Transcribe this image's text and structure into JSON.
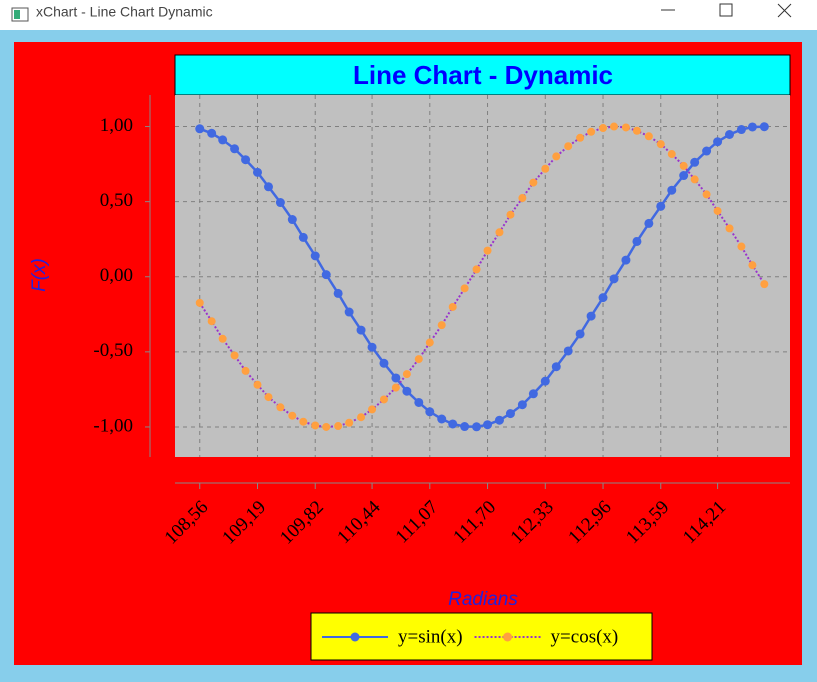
{
  "window": {
    "title": "xChart - Line Chart Dynamic"
  },
  "chart_data": {
    "type": "line",
    "title": "Line Chart - Dynamic",
    "x_label": "Radians",
    "y_label": "F(x)",
    "x": [
      108.56,
      108.69,
      108.81,
      108.94,
      109.06,
      109.19,
      109.31,
      109.44,
      109.57,
      109.69,
      109.82,
      109.94,
      110.07,
      110.19,
      110.32,
      110.44,
      110.57,
      110.7,
      110.82,
      110.95,
      111.07,
      111.2,
      111.32,
      111.45,
      111.58,
      111.7,
      111.83,
      111.95,
      112.08,
      112.2,
      112.33,
      112.45,
      112.58,
      112.71,
      112.83,
      112.96,
      113.08,
      113.21,
      113.33,
      113.46,
      113.59,
      113.71,
      113.84,
      113.96,
      114.09,
      114.21,
      114.34,
      114.47,
      114.59,
      114.72
    ],
    "series": [
      {
        "name": "y=sin(x)",
        "color": "#4169E1",
        "values": [
          0.985,
          0.955,
          0.911,
          0.852,
          0.779,
          0.695,
          0.599,
          0.494,
          0.381,
          0.262,
          0.139,
          0.014,
          -0.111,
          -0.235,
          -0.355,
          -0.469,
          -0.576,
          -0.674,
          -0.762,
          -0.837,
          -0.899,
          -0.947,
          -0.98,
          -0.997,
          -0.999,
          -0.985,
          -0.955,
          -0.911,
          -0.852,
          -0.779,
          -0.695,
          -0.599,
          -0.494,
          -0.381,
          -0.262,
          -0.139,
          -0.014,
          0.111,
          0.235,
          0.355,
          0.469,
          0.576,
          0.674,
          0.762,
          0.837,
          0.899,
          0.947,
          0.98,
          0.997,
          0.999
        ]
      },
      {
        "name": "y=cos(x)",
        "color": "#FFA040",
        "line_color": "#9933CC",
        "line_style": "dotted",
        "values": [
          -0.174,
          -0.296,
          -0.413,
          -0.524,
          -0.627,
          -0.719,
          -0.801,
          -0.869,
          -0.925,
          -0.965,
          -0.99,
          -1.0,
          -0.994,
          -0.972,
          -0.935,
          -0.883,
          -0.817,
          -0.738,
          -0.648,
          -0.548,
          -0.438,
          -0.322,
          -0.201,
          -0.077,
          0.049,
          0.174,
          0.296,
          0.413,
          0.524,
          0.627,
          0.719,
          0.801,
          0.869,
          0.925,
          0.965,
          0.99,
          1.0,
          0.994,
          0.972,
          0.935,
          0.883,
          0.817,
          0.738,
          0.648,
          0.548,
          0.438,
          0.322,
          0.201,
          0.077,
          -0.049
        ]
      }
    ],
    "xlim": [
      108.29,
      115.0
    ],
    "ylim": [
      -1.2,
      1.21
    ],
    "xticks": [
      {
        "value": 108.56,
        "label": "108,56"
      },
      {
        "value": 109.19,
        "label": "109,19"
      },
      {
        "value": 109.82,
        "label": "109,82"
      },
      {
        "value": 110.44,
        "label": "110,44"
      },
      {
        "value": 111.07,
        "label": "111,07"
      },
      {
        "value": 111.7,
        "label": "111,70"
      },
      {
        "value": 112.33,
        "label": "112,33"
      },
      {
        "value": 112.96,
        "label": "112,96"
      },
      {
        "value": 113.59,
        "label": "113,59"
      },
      {
        "value": 114.21,
        "label": "114,21"
      }
    ],
    "yticks": [
      {
        "value": -1,
        "label": "-1,00"
      },
      {
        "value": -0.5,
        "label": "-0,50"
      },
      {
        "value": 0,
        "label": "0,00"
      },
      {
        "value": 0.5,
        "label": "0,50"
      },
      {
        "value": 1,
        "label": "1,00"
      }
    ],
    "grid": true,
    "legend": "bottom"
  }
}
